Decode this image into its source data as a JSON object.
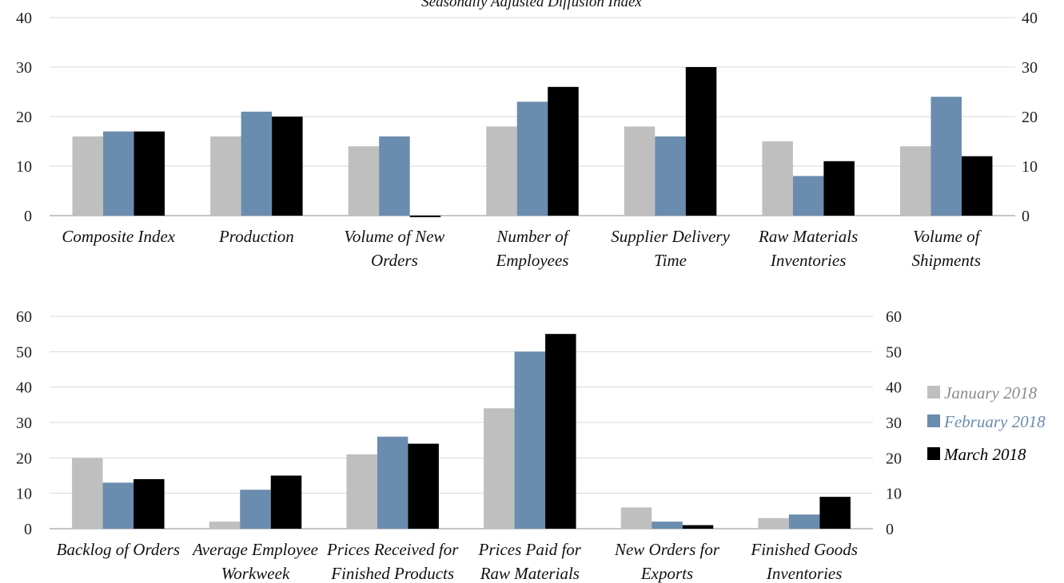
{
  "chart_data": [
    {
      "type": "bar",
      "title": "Seasonally Adjusted Diffusion Index",
      "categories": [
        "Composite Index",
        "Production",
        "Volume of New Orders",
        "Number of Employees",
        "Supplier Delivery Time",
        "Raw Materials Inventories",
        "Volume of Shipments"
      ],
      "category_lines": [
        [
          "Composite Index"
        ],
        [
          "Production"
        ],
        [
          "Volume of New",
          "Orders"
        ],
        [
          "Number of",
          "Employees"
        ],
        [
          "Supplier Delivery",
          "Time"
        ],
        [
          "Raw Materials",
          "Inventories"
        ],
        [
          "Volume of",
          "Shipments"
        ]
      ],
      "series": [
        {
          "name": "January 2018",
          "values": [
            16,
            16,
            14,
            18,
            18,
            15,
            14
          ]
        },
        {
          "name": "February 2018",
          "values": [
            17,
            21,
            16,
            23,
            16,
            8,
            24
          ]
        },
        {
          "name": "March 2018",
          "values": [
            17,
            20,
            -0.3,
            26,
            30,
            11,
            12
          ]
        }
      ],
      "ylim": [
        0,
        40
      ],
      "yticks": [
        0,
        10,
        20,
        30,
        40
      ],
      "secondary_yticks": [
        0,
        10,
        20,
        30,
        40
      ],
      "grid": true
    },
    {
      "type": "bar",
      "categories": [
        "Backlog of Orders",
        "Average Employee Workweek",
        "Prices Received for Finished Products",
        "Prices Paid for Raw Materials",
        "New Orders for Exports",
        "Finished Goods Inventories"
      ],
      "category_lines": [
        [
          "Backlog of Orders"
        ],
        [
          "Average Employee",
          "Workweek"
        ],
        [
          "Prices Received for",
          "Finished Products"
        ],
        [
          "Prices Paid for",
          "Raw Materials"
        ],
        [
          "New Orders for",
          "Exports"
        ],
        [
          "Finished Goods",
          "Inventories"
        ]
      ],
      "series": [
        {
          "name": "January 2018",
          "values": [
            20,
            2,
            21,
            34,
            6,
            3
          ]
        },
        {
          "name": "February 2018",
          "values": [
            13,
            11,
            26,
            50,
            2,
            4
          ]
        },
        {
          "name": "March 2018",
          "values": [
            14,
            15,
            24,
            55,
            1,
            9
          ]
        }
      ],
      "ylim": [
        0,
        60
      ],
      "yticks": [
        0,
        10,
        20,
        30,
        40,
        50,
        60
      ],
      "secondary_yticks": [
        0,
        10,
        20,
        30,
        40,
        50,
        60
      ],
      "grid": true,
      "legend_position": "right"
    }
  ],
  "legend": [
    {
      "label": "January 2018",
      "color": "#bfbfbf",
      "text_color": "#8c8c8c"
    },
    {
      "label": "February 2018",
      "color": "#6a8cae",
      "text_color": "#6a8cae"
    },
    {
      "label": "March 2018",
      "color": "#000000",
      "text_color": "#000000"
    }
  ],
  "colors": {
    "january": "#bfbfbf",
    "february": "#6a8cae",
    "march": "#000000",
    "grid": "#d9d9d9",
    "axis": "#8c8c8c"
  }
}
